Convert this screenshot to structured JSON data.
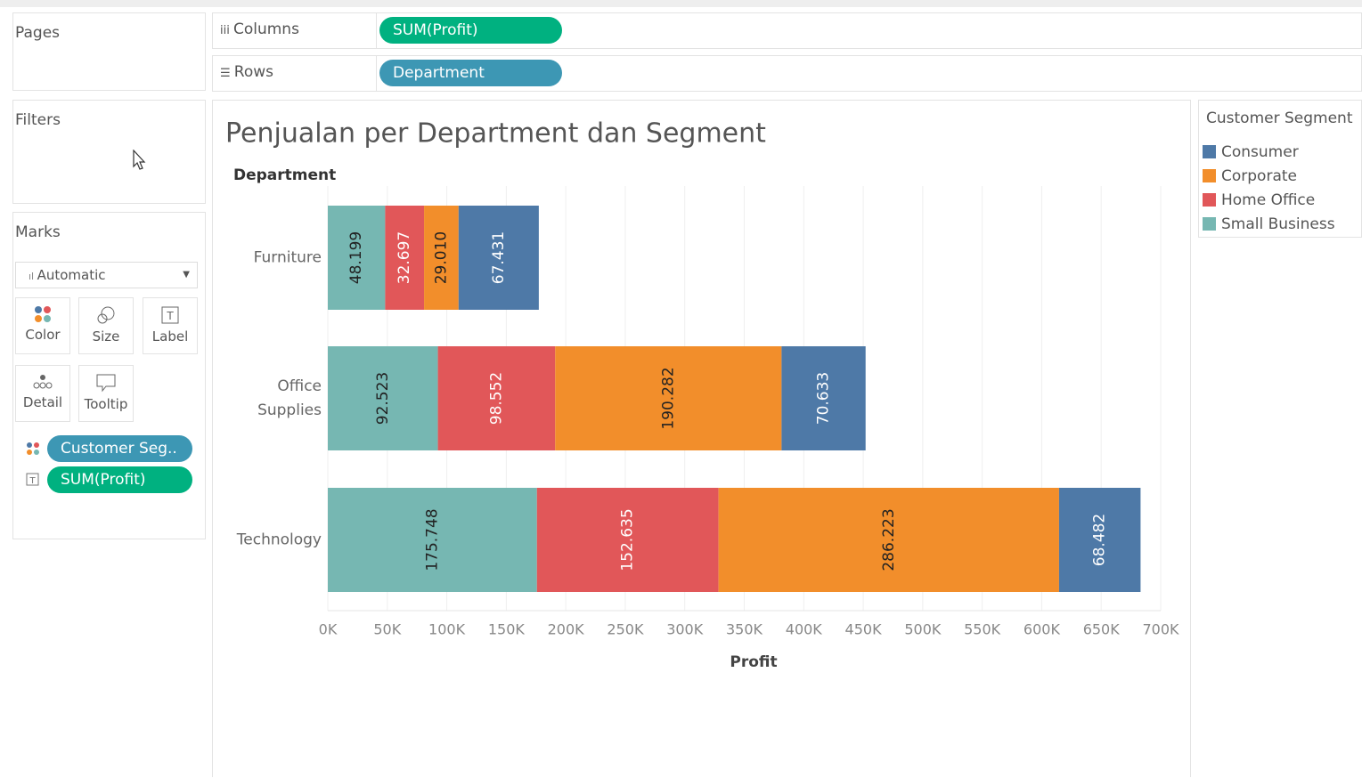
{
  "ui": {
    "pages": "Pages",
    "filters": "Filters",
    "marks": "Marks",
    "mark_type": "Automatic",
    "mark_buttons": [
      "Color",
      "Size",
      "Label",
      "Detail",
      "Tooltip"
    ],
    "mark_pills": [
      "Customer Seg..",
      "SUM(Profit)"
    ],
    "columns": "Columns",
    "columns_pill": "SUM(Profit)",
    "rows": "Rows",
    "rows_pill": "Department"
  },
  "chart_data": {
    "type": "stacked_bar_horizontal",
    "title": "Penjualan per Department dan Segment",
    "y_label": "Department",
    "x_label": "Profit",
    "legend_title": "Customer Segment",
    "categories": [
      "Furniture",
      "Office Supplies",
      "Technology"
    ],
    "series": [
      {
        "name": "Consumer",
        "color": "#4e79a7",
        "values": [
          67431,
          70633,
          68482
        ],
        "value_labels": [
          "67.431",
          "70.633",
          "68.482"
        ]
      },
      {
        "name": "Corporate",
        "color": "#f28e2b",
        "values": [
          29010,
          190282,
          286223
        ],
        "value_labels": [
          "29.010",
          "190.282",
          "286.223"
        ]
      },
      {
        "name": "Home Office",
        "color": "#e15759",
        "values": [
          32697,
          98552,
          152635
        ],
        "value_labels": [
          "32.697",
          "98.552",
          "152.635"
        ]
      },
      {
        "name": "Small Business",
        "color": "#76b7b2",
        "values": [
          48199,
          92523,
          175748
        ],
        "value_labels": [
          "48.199",
          "92.523",
          "175.748"
        ]
      }
    ],
    "xlim": [
      0,
      700000
    ],
    "xticks": [
      {
        "value": 0,
        "label": "0K"
      },
      {
        "value": 50000,
        "label": "50K"
      },
      {
        "value": 100000,
        "label": "100K"
      },
      {
        "value": 150000,
        "label": "150K"
      },
      {
        "value": 200000,
        "label": "200K"
      },
      {
        "value": 250000,
        "label": "250K"
      },
      {
        "value": 300000,
        "label": "300K"
      },
      {
        "value": 350000,
        "label": "350K"
      },
      {
        "value": 400000,
        "label": "400K"
      },
      {
        "value": 450000,
        "label": "450K"
      },
      {
        "value": 500000,
        "label": "500K"
      },
      {
        "value": 550000,
        "label": "550K"
      },
      {
        "value": 600000,
        "label": "600K"
      },
      {
        "value": 650000,
        "label": "650K"
      },
      {
        "value": 700000,
        "label": "700K"
      }
    ],
    "grid": true
  }
}
